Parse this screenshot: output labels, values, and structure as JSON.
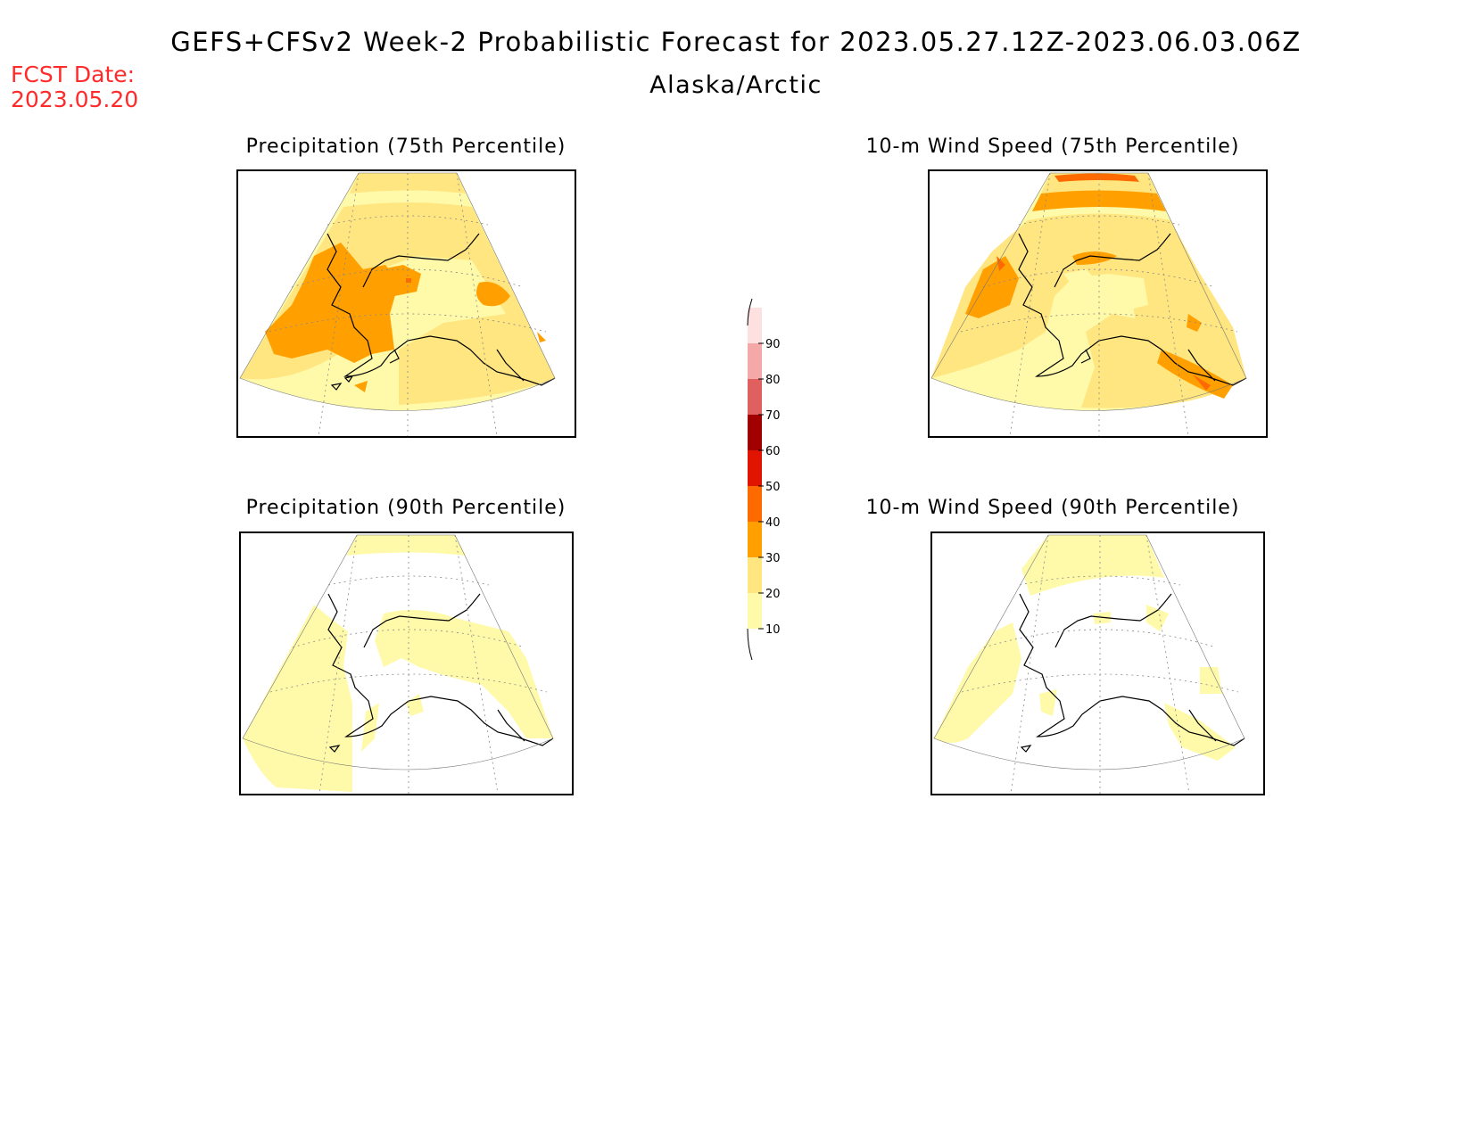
{
  "header": {
    "title": "GEFS+CFSv2 Week-2 Probabilistic Forecast for 2023.05.27.12Z-2023.06.03.06Z",
    "region": "Alaska/Arctic",
    "fcst_label": "FCST Date:",
    "fcst_date": "2023.05.20"
  },
  "panels": {
    "precip_75": {
      "title": "Precipitation (75th Percentile)"
    },
    "wind_75": {
      "title": "10-m Wind Speed (75th Percentile)"
    },
    "precip_90": {
      "title": "Precipitation (90th Percentile)"
    },
    "wind_90": {
      "title": "10-m Wind Speed (90th Percentile)"
    }
  },
  "colorbar": {
    "levels": [
      "10",
      "20",
      "30",
      "40",
      "50",
      "60",
      "70",
      "80",
      "90"
    ],
    "colors": [
      "#fffaaa",
      "#ffe680",
      "#ffa000",
      "#ff6a00",
      "#e01400",
      "#a00000",
      "#e06060",
      "#f4a8a8",
      "#fde0e0"
    ]
  },
  "colors": {
    "c10": "#fffaaa",
    "c20": "#ffe680",
    "c30": "#ffa000",
    "c40": "#ff6a00",
    "title_red": "#ff2a2a"
  }
}
